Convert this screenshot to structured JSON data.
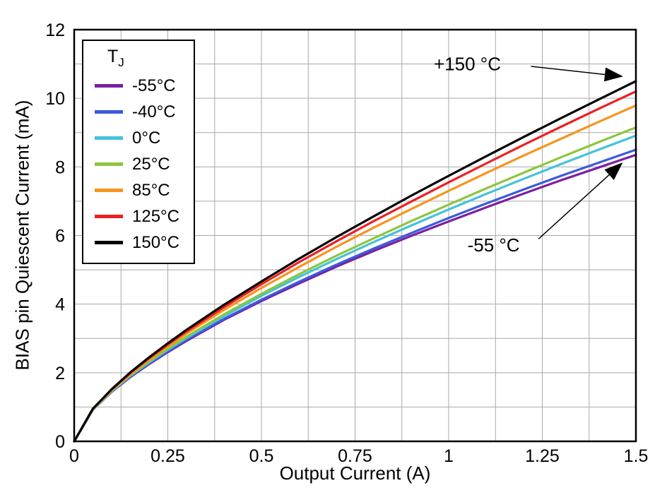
{
  "chart_data": {
    "type": "line",
    "title": "",
    "xlabel": "Output Current (A)",
    "ylabel": "BIAS pin Quiescent Current (mA)",
    "xlim": [
      0,
      1.5
    ],
    "ylim": [
      0,
      12
    ],
    "x_ticks": [
      0,
      0.25,
      0.5,
      0.75,
      1,
      1.25,
      1.5
    ],
    "x_tick_labels": [
      "0",
      "0.25",
      "0.5",
      "0.75",
      "1",
      "1.25",
      "1.5"
    ],
    "y_ticks": [
      0,
      2,
      4,
      6,
      8,
      10,
      12
    ],
    "x_minor_step": 0.125,
    "y_minor_step": 1,
    "grid": true,
    "grid_color": "#a8a8a8",
    "frame_color": "#000000",
    "x": [
      0,
      0.05,
      0.1,
      0.15,
      0.2,
      0.25,
      0.3,
      0.4,
      0.5,
      0.6,
      0.7,
      0.8,
      0.9,
      1.0,
      1.1,
      1.2,
      1.3,
      1.4,
      1.5
    ],
    "series": [
      {
        "name": "-55C",
        "label": "-55°C",
        "color": "#7B1FA2",
        "values": [
          0,
          0.92,
          1.44,
          1.87,
          2.25,
          2.6,
          2.93,
          3.54,
          4.09,
          4.6,
          5.09,
          5.55,
          5.99,
          6.41,
          6.82,
          7.22,
          7.61,
          7.98,
          8.35
        ]
      },
      {
        "name": "-40C",
        "label": "-40°C",
        "color": "#3A5BDC",
        "values": [
          0,
          0.92,
          1.44,
          1.88,
          2.27,
          2.62,
          2.96,
          3.57,
          4.13,
          4.65,
          5.15,
          5.62,
          6.07,
          6.51,
          6.93,
          7.34,
          7.74,
          8.12,
          8.5
        ]
      },
      {
        "name": "0C",
        "label": "0°C",
        "color": "#45C2D8",
        "values": [
          0,
          0.92,
          1.46,
          1.91,
          2.3,
          2.67,
          3.01,
          3.65,
          4.24,
          4.79,
          5.31,
          5.81,
          6.29,
          6.76,
          7.21,
          7.65,
          8.08,
          8.5,
          8.91
        ]
      },
      {
        "name": "25C",
        "label": "25°C",
        "color": "#8CC63E",
        "values": [
          0,
          0.93,
          1.47,
          1.92,
          2.33,
          2.7,
          3.05,
          3.7,
          4.3,
          4.87,
          5.41,
          5.92,
          6.42,
          6.9,
          7.37,
          7.83,
          8.28,
          8.72,
          9.15
        ]
      },
      {
        "name": "85C",
        "label": "85°C",
        "color": "#F7941D",
        "values": [
          0,
          0.94,
          1.49,
          1.96,
          2.38,
          2.77,
          3.14,
          3.83,
          4.47,
          5.08,
          5.67,
          6.23,
          6.77,
          7.3,
          7.82,
          8.33,
          8.82,
          9.31,
          9.79
        ]
      },
      {
        "name": "125C",
        "label": "125°C",
        "color": "#EC2024",
        "values": [
          0,
          0.95,
          1.51,
          1.99,
          2.42,
          2.82,
          3.2,
          3.91,
          4.58,
          5.22,
          5.83,
          6.42,
          6.99,
          7.55,
          8.1,
          8.64,
          9.17,
          9.69,
          10.2
        ]
      },
      {
        "name": "150C",
        "label": "150°C",
        "color": "#000000",
        "values": [
          0,
          0.95,
          1.52,
          2.01,
          2.45,
          2.86,
          3.25,
          3.98,
          4.66,
          5.32,
          5.95,
          6.56,
          7.16,
          7.74,
          8.31,
          8.87,
          9.42,
          9.96,
          10.5
        ]
      }
    ],
    "legend": {
      "position": "top-left",
      "title_main": "T",
      "title_sub": "J",
      "items": [
        {
          "label": "-55°C",
          "color": "#7B1FA2"
        },
        {
          "label": "-40°C",
          "color": "#3A5BDC"
        },
        {
          "label": "0°C",
          "color": "#45C2D8"
        },
        {
          "label": "25°C",
          "color": "#8CC63E"
        },
        {
          "label": "85°C",
          "color": "#F7941D"
        },
        {
          "label": "125°C",
          "color": "#EC2024"
        },
        {
          "label": "150°C",
          "color": "#000000"
        }
      ]
    },
    "annotations": [
      {
        "label": "+150 °C",
        "text_x": 1.05,
        "text_y": 11.0,
        "line": [
          1.22,
          10.93,
          1.462,
          10.64
        ]
      },
      {
        "label": "-55 °C",
        "text_x": 1.12,
        "text_y": 5.72,
        "line": [
          1.24,
          5.9,
          1.462,
          8.1
        ]
      }
    ]
  }
}
